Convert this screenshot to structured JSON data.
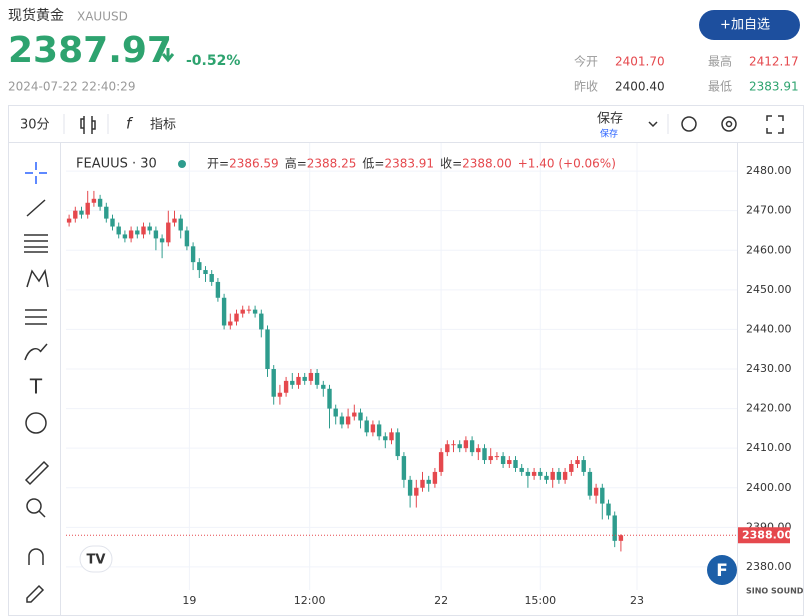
{
  "header": {
    "title": "现货黄金",
    "symbol": "XAUUSD",
    "price": "2387.97",
    "change": "-0.52%",
    "datetime": "2024-07-22 22:40:29",
    "button": "加自选",
    "stats": [
      {
        "label": "今开",
        "value": "2401.70"
      },
      {
        "label": "最高",
        "value": "2412.17"
      },
      {
        "label": "昨收",
        "value": "2400.40"
      },
      {
        "label": "最低",
        "value": "2383.91"
      }
    ]
  },
  "toolbar": {
    "interval": "30分",
    "indicators": "指标",
    "save": "保存",
    "save_sub": "保存"
  },
  "chart_data": {
    "type": "candlestick",
    "title": "FEAUUS · 30",
    "legend": [
      {
        "key": "开=",
        "value": "2386.59"
      },
      {
        "key": "高=",
        "value": "2388.25"
      },
      {
        "key": "低=",
        "value": "2383.91"
      },
      {
        "key": "收=",
        "value": "2388.00"
      }
    ],
    "change": "+1.40 (+0.06%)",
    "open": [
      2467,
      2468,
      2470,
      2469,
      2472,
      2473,
      2471,
      2468,
      2466,
      2464,
      2463,
      2465,
      2464,
      2466,
      2465,
      2463,
      2462,
      2467,
      2468,
      2465,
      2461,
      2457,
      2455,
      2454,
      2452,
      2448,
      2441,
      2442,
      2444,
      2445,
      2445,
      2444,
      2440,
      2430,
      2423,
      2424,
      2427,
      2426,
      2428,
      2427,
      2429,
      2426,
      2425,
      2420,
      2418,
      2416,
      2418,
      2419,
      2417,
      2414,
      2416,
      2413,
      2412,
      2414,
      2408,
      2402,
      2398,
      2400,
      2402,
      2401,
      2404,
      2409,
      2411,
      2411,
      2410,
      2412,
      2409,
      2410,
      2407,
      2408,
      2408,
      2406,
      2407,
      2405,
      2404,
      2403,
      2404,
      2403,
      2402,
      2404,
      2402,
      2404,
      2406,
      2407,
      2404,
      2398,
      2400,
      2396,
      2393,
      2386.59
    ],
    "high": [
      2469,
      2471,
      2471,
      2475,
      2475,
      2474,
      2472,
      2469,
      2467,
      2465,
      2466,
      2466,
      2467,
      2467,
      2466,
      2464,
      2470,
      2470,
      2469,
      2466,
      2462,
      2458,
      2456,
      2455,
      2453,
      2449,
      2444,
      2445,
      2446,
      2446,
      2446,
      2445,
      2441,
      2431,
      2426,
      2428,
      2429,
      2429,
      2429,
      2430,
      2430,
      2427,
      2426,
      2421,
      2419,
      2420,
      2421,
      2420,
      2418,
      2417,
      2417,
      2414,
      2415,
      2415,
      2409,
      2403,
      2402,
      2404,
      2403,
      2405,
      2410,
      2412,
      2412,
      2412,
      2413,
      2413,
      2411,
      2411,
      2410,
      2409,
      2409,
      2408,
      2408,
      2406,
      2405,
      2405,
      2405,
      2404,
      2405,
      2405,
      2405,
      2407,
      2408,
      2408,
      2405,
      2401,
      2401,
      2397,
      2394,
      2388.25
    ],
    "low": [
      2466,
      2467,
      2468,
      2468,
      2471,
      2470,
      2467,
      2465,
      2463,
      2462,
      2462,
      2463,
      2463,
      2464,
      2460,
      2458,
      2461,
      2466,
      2463,
      2460,
      2455,
      2453,
      2452,
      2451,
      2447,
      2440,
      2440,
      2441,
      2443,
      2444,
      2443,
      2438,
      2428,
      2421,
      2421,
      2423,
      2425,
      2425,
      2426,
      2426,
      2425,
      2423,
      2415,
      2416,
      2415,
      2415,
      2417,
      2415,
      2413,
      2413,
      2412,
      2410,
      2411,
      2407,
      2400,
      2395,
      2395,
      2399,
      2399,
      2400,
      2403,
      2408,
      2409,
      2409,
      2409,
      2408,
      2407,
      2406,
      2406,
      2407,
      2405,
      2405,
      2404,
      2403,
      2400,
      2402,
      2402,
      2401,
      2400,
      2401,
      2401,
      2403,
      2405,
      2403,
      2397,
      2396,
      2392,
      2392,
      2385,
      2383.91
    ],
    "close": [
      2468,
      2470,
      2469,
      2472,
      2473,
      2471,
      2468,
      2466,
      2464,
      2463,
      2465,
      2464,
      2466,
      2465,
      2463,
      2462,
      2467,
      2468,
      2465,
      2461,
      2457,
      2455,
      2454,
      2452,
      2448,
      2441,
      2442,
      2444,
      2445,
      2445,
      2444,
      2440,
      2430,
      2423,
      2424,
      2427,
      2426,
      2428,
      2427,
      2429,
      2426,
      2425,
      2420,
      2418,
      2416,
      2418,
      2419,
      2417,
      2414,
      2416,
      2413,
      2412,
      2414,
      2408,
      2402,
      2398,
      2400,
      2402,
      2401,
      2404,
      2409,
      2411,
      2411,
      2410,
      2412,
      2409,
      2410,
      2407,
      2408,
      2408,
      2406,
      2407,
      2405,
      2404,
      2403,
      2404,
      2403,
      2402,
      2404,
      2402,
      2404,
      2406,
      2407,
      2404,
      2398,
      2400,
      2396,
      2393,
      2386.59,
      2388
    ],
    "last_label": "2388.00",
    "up_color": "#e5484d",
    "down_color": "#2e9c8d",
    "xlim": [
      0,
      100
    ],
    "xticks": [
      {
        "value": 19.4,
        "label": "19"
      },
      {
        "value": 38.8,
        "label": "12:00"
      },
      {
        "value": 60,
        "label": "22"
      },
      {
        "value": 76,
        "label": "15:00"
      },
      {
        "value": 91.6,
        "label": "23"
      }
    ],
    "ylim": [
      2367.6,
      2487.1
    ],
    "yticks": [
      {
        "value": 2380,
        "label": "2380.00"
      },
      {
        "value": 2390,
        "label": "2390.00"
      },
      {
        "value": 2400,
        "label": "2400.00"
      },
      {
        "value": 2410,
        "label": "2410.00"
      },
      {
        "value": 2420,
        "label": "2420.00"
      },
      {
        "value": 2430,
        "label": "2430.00"
      },
      {
        "value": 2440,
        "label": "2440.00"
      },
      {
        "value": 2450,
        "label": "2450.00"
      },
      {
        "value": 2460,
        "label": "2460.00"
      },
      {
        "value": 2470,
        "label": "2470.00"
      },
      {
        "value": 2480,
        "label": "2480.00"
      }
    ],
    "grid": true
  }
}
